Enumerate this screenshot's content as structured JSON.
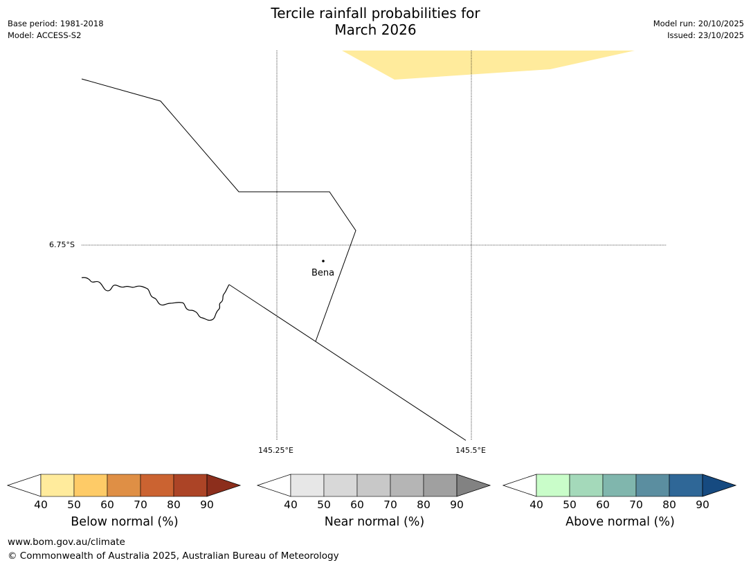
{
  "title_line1": "Tercile rainfall probabilities for",
  "title_line2": "March 2026",
  "meta_left": [
    "Base period: 1981-2018",
    "Model: ACCESS-S2"
  ],
  "meta_right": [
    "Model run: 20/10/2025",
    "Issued: 23/10/2025"
  ],
  "map": {
    "lat_label": "6.75°S",
    "lon_labels": [
      "145.25°E",
      "145.5°E"
    ],
    "place": "Bena",
    "shaded_category": "Below normal 40-50%",
    "shaded_color": "#ffeb9c"
  },
  "colorbars": [
    {
      "name": "Below normal (%)",
      "ticks": [
        "40",
        "50",
        "60",
        "70",
        "80",
        "90"
      ],
      "colors": [
        "#ffffff",
        "#ffeb9c",
        "#fecb67",
        "#df8f45",
        "#cb6331",
        "#ac4426",
        "#8c2e1c"
      ]
    },
    {
      "name": "Near normal (%)",
      "ticks": [
        "40",
        "50",
        "60",
        "70",
        "80",
        "90"
      ],
      "colors": [
        "#ffffff",
        "#e7e7e7",
        "#d8d8d8",
        "#c8c8c8",
        "#b5b5b5",
        "#a0a0a0",
        "#828282"
      ]
    },
    {
      "name": "Above normal (%)",
      "ticks": [
        "40",
        "50",
        "60",
        "70",
        "80",
        "90"
      ],
      "colors": [
        "#ffffff",
        "#c9fdc9",
        "#a4d9ba",
        "#80b6ad",
        "#5b8ea0",
        "#2f6797",
        "#164a80"
      ]
    }
  ],
  "footer": {
    "url": "www.bom.gov.au/climate",
    "copyright": "© Commonwealth of Australia 2025, Australian Bureau of Meteorology"
  }
}
